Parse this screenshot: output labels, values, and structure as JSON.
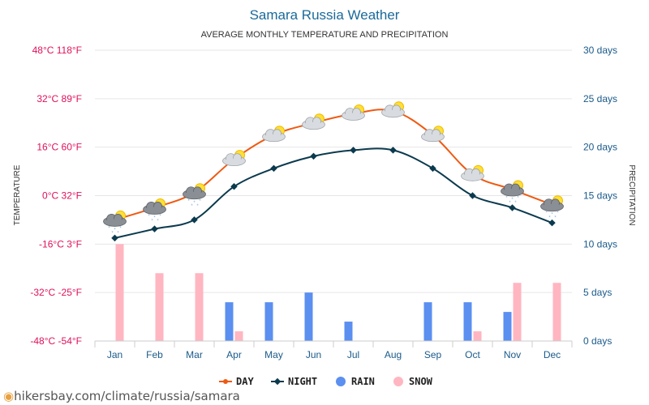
{
  "chart_data": {
    "type": "line",
    "title": "Samara Russia Weather",
    "subtitle": "AVERAGE MONTHLY TEMPERATURE AND PRECIPITATION",
    "ylabel_left": "TEMPERATURE",
    "ylabel_right": "PRECIPITATION",
    "categories": [
      "Jan",
      "Feb",
      "Mar",
      "Apr",
      "May",
      "Jun",
      "Jul",
      "Aug",
      "Sep",
      "Oct",
      "Nov",
      "Dec"
    ],
    "y_left": {
      "ylim": [
        -48,
        48
      ],
      "ticks": [
        48,
        32,
        16,
        0,
        -16,
        -32,
        -48
      ],
      "tick_labels": [
        "48°C 118°F",
        "32°C 89°F",
        "16°C 60°F",
        "0°C 32°F",
        "-16°C 3°F",
        "-32°C -25°F",
        "-48°C -54°F"
      ]
    },
    "y_right": {
      "ylim": [
        0,
        30
      ],
      "ticks": [
        30,
        25,
        20,
        15,
        10,
        5,
        0
      ],
      "tick_labels": [
        "30 days",
        "25 days",
        "20 days",
        "15 days",
        "10 days",
        "5 days",
        "0 days"
      ]
    },
    "series": [
      {
        "name": "DAY",
        "kind": "line",
        "axis": "left",
        "color": "#ee5a12",
        "values": [
          -8,
          -4,
          1,
          12,
          20,
          24,
          27,
          28,
          20,
          7,
          2,
          -3
        ]
      },
      {
        "name": "NIGHT",
        "kind": "line",
        "axis": "left",
        "color": "#0b3a4e",
        "values": [
          -14,
          -11,
          -8,
          3,
          9,
          13,
          15,
          15,
          9,
          0,
          -4,
          -9
        ]
      },
      {
        "name": "RAIN",
        "kind": "bar",
        "axis": "right",
        "color": "#5b8ff0",
        "values": [
          0,
          0,
          0,
          4,
          4,
          5,
          2,
          0,
          4,
          4,
          3,
          0
        ]
      },
      {
        "name": "SNOW",
        "kind": "bar",
        "axis": "right",
        "color": "#ffb6c1",
        "values": [
          10,
          7,
          7,
          1,
          0,
          0,
          0,
          0,
          0,
          1,
          6,
          6
        ]
      }
    ],
    "weather_icons": [
      "snow-cloud-icon",
      "snow-cloud-icon",
      "snow-cloud-icon",
      "sun-cloud-icon",
      "sun-cloud-icon",
      "sun-cloud-icon",
      "sun-cloud-icon",
      "sun-cloud-icon",
      "sun-cloud-icon",
      "sun-cloud-icon",
      "snow-cloud-icon",
      "snow-cloud-icon"
    ],
    "legend": [
      "DAY",
      "NIGHT",
      "RAIN",
      "SNOW"
    ],
    "legend_position": "bottom",
    "grid": true
  },
  "colors": {
    "title": "#1a6a9a",
    "left_axis": "#e0105a",
    "right_axis": "#1a5a8a",
    "grid": "#e6e6e6"
  },
  "source": {
    "text": "hikersbay.com/climate/russia/samara"
  }
}
